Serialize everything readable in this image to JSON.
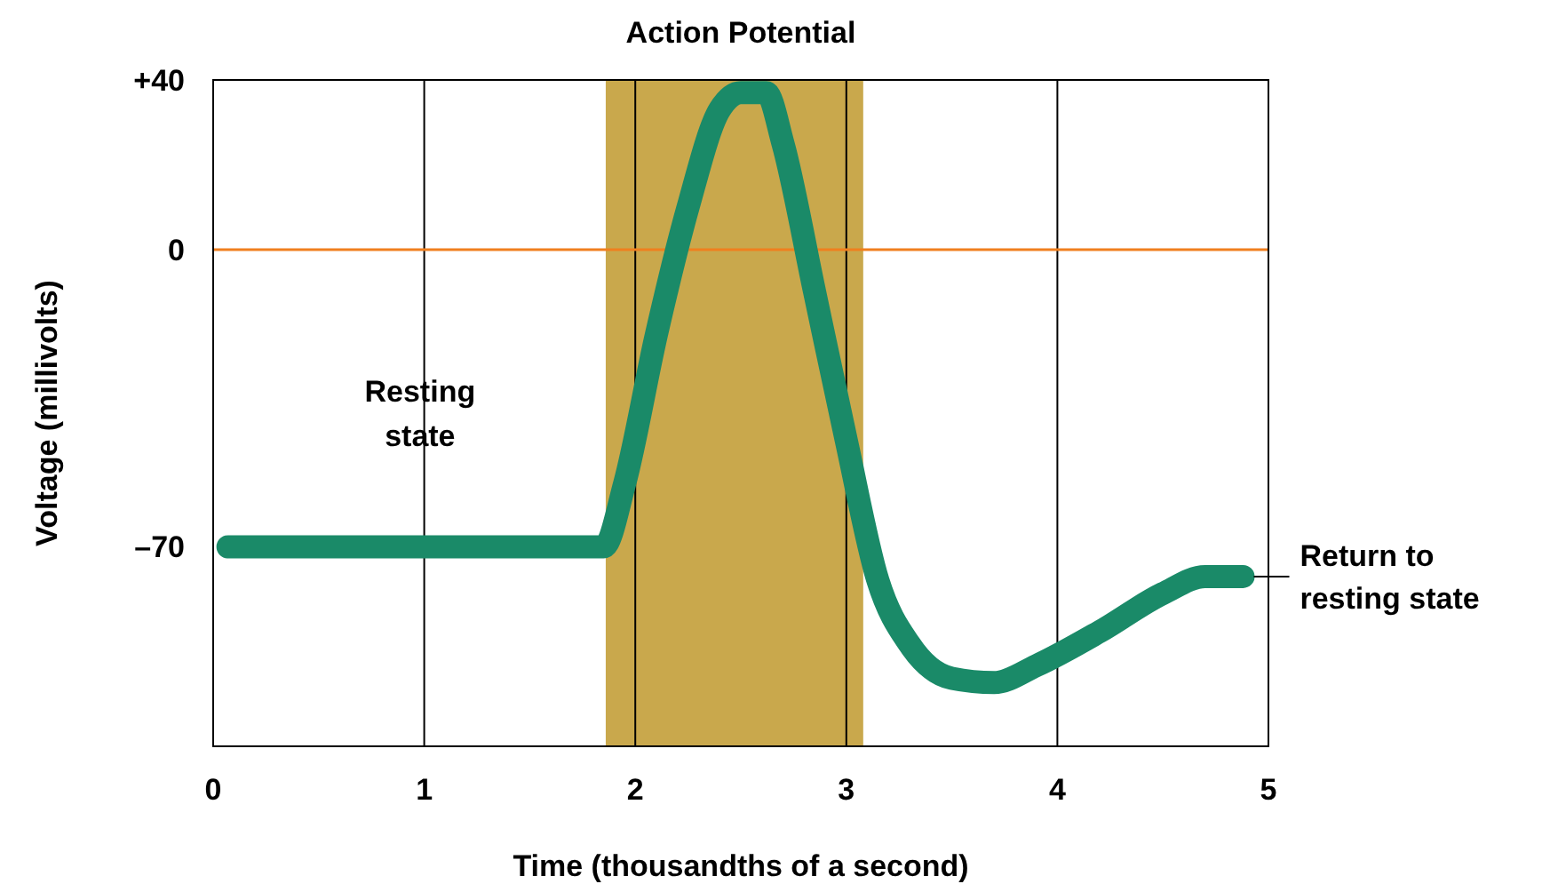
{
  "chart_data": {
    "type": "line",
    "title": "Action Potential",
    "xlabel": "Time (thousandths of a second)",
    "ylabel": "Voltage (millivolts)",
    "xlim": [
      0,
      5
    ],
    "xticks": [
      0,
      1,
      2,
      3,
      4,
      5
    ],
    "ylim": [
      -117,
      40
    ],
    "yticks": [
      {
        "value": 40,
        "label": "+40"
      },
      0,
      {
        "value": -70,
        "label": "–70"
      }
    ],
    "grid": "x",
    "series": [
      {
        "color": "#1a8a68",
        "x": [
          0.07,
          1.85,
          1.95,
          2.1,
          2.25,
          2.4,
          2.5,
          2.62,
          2.7,
          2.85,
          3.0,
          3.15,
          3.3,
          3.5,
          3.7,
          3.9,
          4.2,
          4.5,
          4.7,
          4.88
        ],
        "values": [
          -70,
          -70,
          -55,
          -20,
          10,
          33,
          37,
          37,
          25,
          -10,
          -45,
          -78,
          -93,
          -101,
          -102,
          -98,
          -90,
          -81,
          -77,
          -77
        ]
      }
    ],
    "ref_lines": [
      {
        "axis": "y",
        "value": 0,
        "color": "#f07f1e"
      }
    ],
    "bands": [
      {
        "axis": "x",
        "from": 1.86,
        "to": 3.08,
        "color": "#c9a84c"
      }
    ],
    "annotations": [
      "Resting state",
      {
        "text": "Return to resting state",
        "x": 4.88,
        "y": -77
      }
    ]
  }
}
